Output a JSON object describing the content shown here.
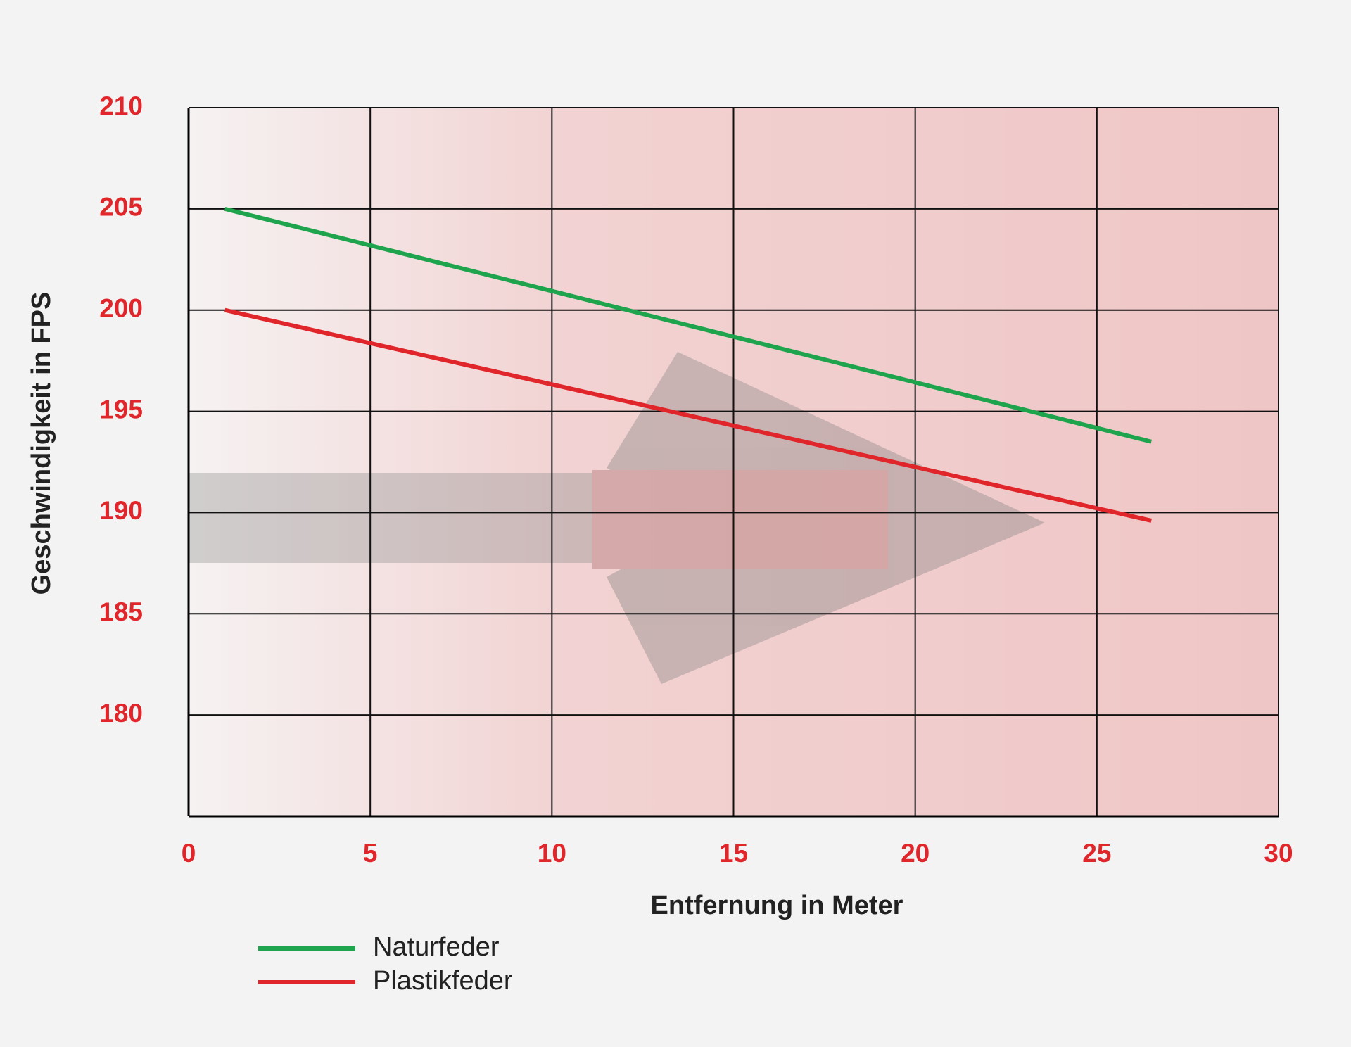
{
  "chart_data": {
    "type": "line",
    "x_label": "Entfernung in Meter",
    "y_label": "Geschwindigkeit in FPS",
    "x": [
      1,
      26.5
    ],
    "series": [
      {
        "name": "Naturfeder",
        "color": "#1ea44c",
        "values": [
          205,
          193.5
        ]
      },
      {
        "name": "Plastikfeder",
        "color": "#e0262a",
        "values": [
          200,
          189.6
        ]
      }
    ],
    "xlim": [
      0,
      30
    ],
    "xticks": [
      0,
      5,
      10,
      15,
      20,
      25,
      30
    ],
    "ylim": [
      175,
      210
    ],
    "yticks": [
      180,
      185,
      190,
      195,
      200,
      205,
      210
    ],
    "grid": true
  }
}
